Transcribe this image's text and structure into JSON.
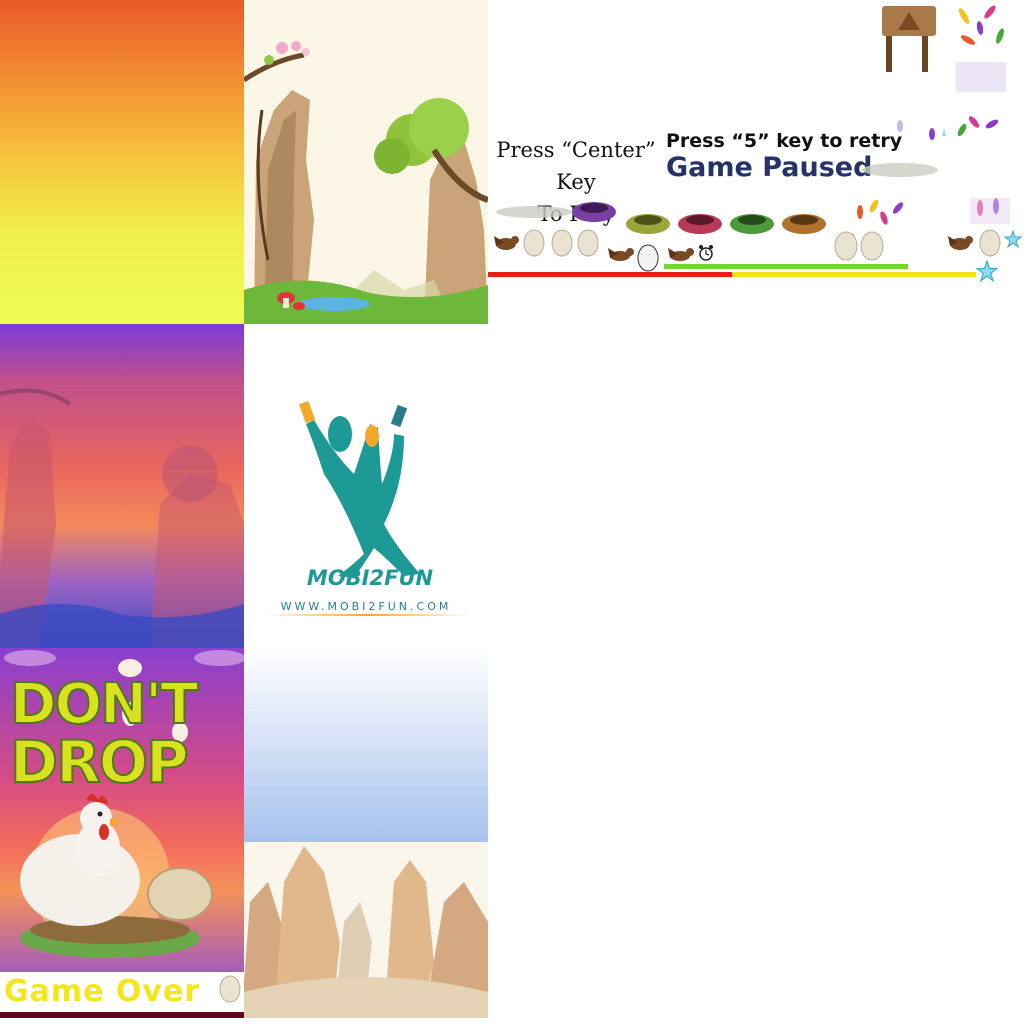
{
  "ui": {
    "start_prompt_line1": "Press “Center” Key",
    "start_prompt_line2": "To Play",
    "retry_prompt": "Press “5” key to retry",
    "paused_text": "Game Paused",
    "game_over_text": "Game Over"
  },
  "title": {
    "logo_line1": "DON'T",
    "logo_line2": "DROP"
  },
  "brand": {
    "wordmark": "MOBI2FUN",
    "url": "WWW.MOBI2FUN.COM"
  },
  "sprites": {
    "nest_colors": [
      "#7a3fa5",
      "#9aa53a",
      "#b83a5a",
      "#4e9a3a",
      "#b0732e"
    ],
    "feather_colors": [
      "#f2c21f",
      "#d93a8a",
      "#4aa83a",
      "#8a3fc8",
      "#e85a2a"
    ],
    "icons": [
      "signpost-icon",
      "bird-icon",
      "egg-icon",
      "alarm-clock-icon",
      "star-icon",
      "cloud-icon",
      "feather-icon",
      "nest-icon",
      "hen-icon"
    ]
  },
  "bars": {
    "red": "#e8201a",
    "green": "#74d62a",
    "yellow": "#f5e21a"
  }
}
